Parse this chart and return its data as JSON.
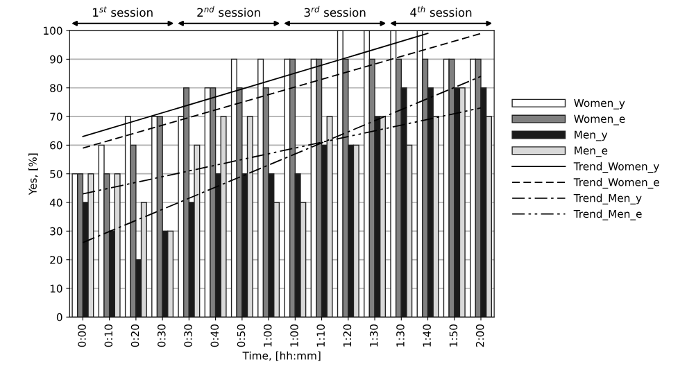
{
  "chart_data": {
    "type": "bar",
    "xlabel": "Time, [hh:mm]",
    "ylabel": "Yes, [%]",
    "categories": [
      "0:00",
      "0:10",
      "0:20",
      "0:30",
      "0:30",
      "0:40",
      "0:50",
      "1:00",
      "1:00",
      "1:10",
      "1:20",
      "1:30",
      "1:30",
      "1:40",
      "1:50",
      "2:00"
    ],
    "series": [
      {
        "name": "Women_y",
        "color": "#ffffff",
        "values": [
          50,
          60,
          70,
          70,
          70,
          80,
          90,
          90,
          90,
          90,
          100,
          100,
          100,
          100,
          90,
          90
        ]
      },
      {
        "name": "Women_e",
        "color": "#808080",
        "values": [
          50,
          50,
          60,
          70,
          80,
          80,
          80,
          80,
          90,
          90,
          90,
          90,
          90,
          90,
          90,
          90
        ]
      },
      {
        "name": "Men_y",
        "color": "#1a1a1a",
        "values": [
          40,
          30,
          20,
          30,
          40,
          50,
          50,
          50,
          50,
          60,
          60,
          70,
          80,
          80,
          80,
          80
        ]
      },
      {
        "name": "Men_e",
        "color": "#d9d9d9",
        "values": [
          50,
          50,
          40,
          30,
          60,
          70,
          70,
          40,
          40,
          70,
          60,
          70,
          60,
          70,
          80,
          70
        ]
      },
      {
        "name": "Trend_Women_y",
        "type": "line",
        "line_style": "solid",
        "color": "#000000",
        "values": [
          63,
          null,
          null,
          null,
          null,
          null,
          null,
          null,
          null,
          null,
          null,
          null,
          null,
          99,
          null,
          null
        ]
      },
      {
        "name": "Trend_Women_e",
        "type": "line",
        "line_style": "dashed",
        "color": "#000000",
        "values": [
          59,
          null,
          null,
          null,
          null,
          null,
          null,
          null,
          null,
          null,
          null,
          null,
          null,
          null,
          null,
          99
        ]
      },
      {
        "name": "Trend_Men_y",
        "type": "line",
        "line_style": "dashdot",
        "color": "#000000",
        "values": [
          26,
          null,
          null,
          null,
          null,
          null,
          null,
          null,
          null,
          null,
          null,
          null,
          null,
          null,
          null,
          84
        ]
      },
      {
        "name": "Trend_Men_e",
        "type": "line",
        "line_style": "dashdotdot",
        "color": "#000000",
        "values": [
          43,
          null,
          null,
          null,
          null,
          null,
          null,
          null,
          null,
          null,
          null,
          null,
          null,
          null,
          null,
          73
        ]
      }
    ],
    "ylim": [
      0,
      100
    ],
    "yticks": [
      0,
      10,
      20,
      30,
      40,
      50,
      60,
      70,
      80,
      90,
      100
    ],
    "grid": "y",
    "legend": "right",
    "annotations": [
      "1$^{st}$ session",
      "2$^{nd}$ session",
      "3$^{rd}$ session",
      "4$^{th}$ session"
    ]
  }
}
